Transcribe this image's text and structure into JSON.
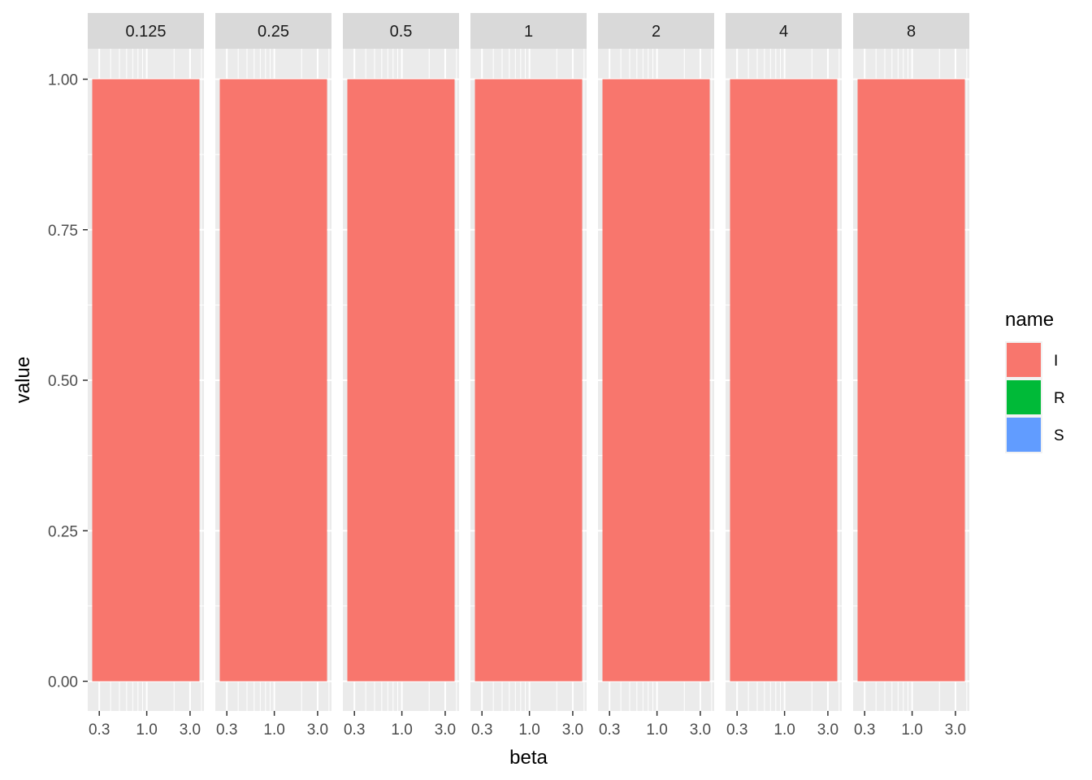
{
  "chart_data": {
    "type": "bar",
    "stacked": true,
    "facet_variable_values": [
      "0.125",
      "0.25",
      "0.5",
      "1",
      "2",
      "4",
      "8"
    ],
    "x_tick_labels": [
      "0.3",
      "1.0",
      "3.0"
    ],
    "x_scale": "log10",
    "xlabel": "beta",
    "ylabel": "value",
    "ylim": [
      0,
      1
    ],
    "y_ticks": [
      "0.00",
      "0.25",
      "0.50",
      "0.75",
      "1.00"
    ],
    "legend": {
      "title": "name",
      "position": "right",
      "entries": [
        {
          "name": "I",
          "color": "#F8766D"
        },
        {
          "name": "R",
          "color": "#00BA38"
        },
        {
          "name": "S",
          "color": "#619CFF"
        }
      ]
    },
    "series": [
      {
        "name": "I",
        "color": "#F8766D",
        "values": [
          1,
          1,
          1,
          1,
          1,
          1,
          1
        ]
      },
      {
        "name": "R",
        "color": "#00BA38",
        "values": [
          0,
          0,
          0,
          0,
          0,
          0,
          0
        ]
      },
      {
        "name": "S",
        "color": "#619CFF",
        "values": [
          0,
          0,
          0,
          0,
          0,
          0,
          0
        ]
      }
    ],
    "grid": true,
    "panel_background": "#EBEBEB",
    "strip_background": "#D9D9D9"
  }
}
